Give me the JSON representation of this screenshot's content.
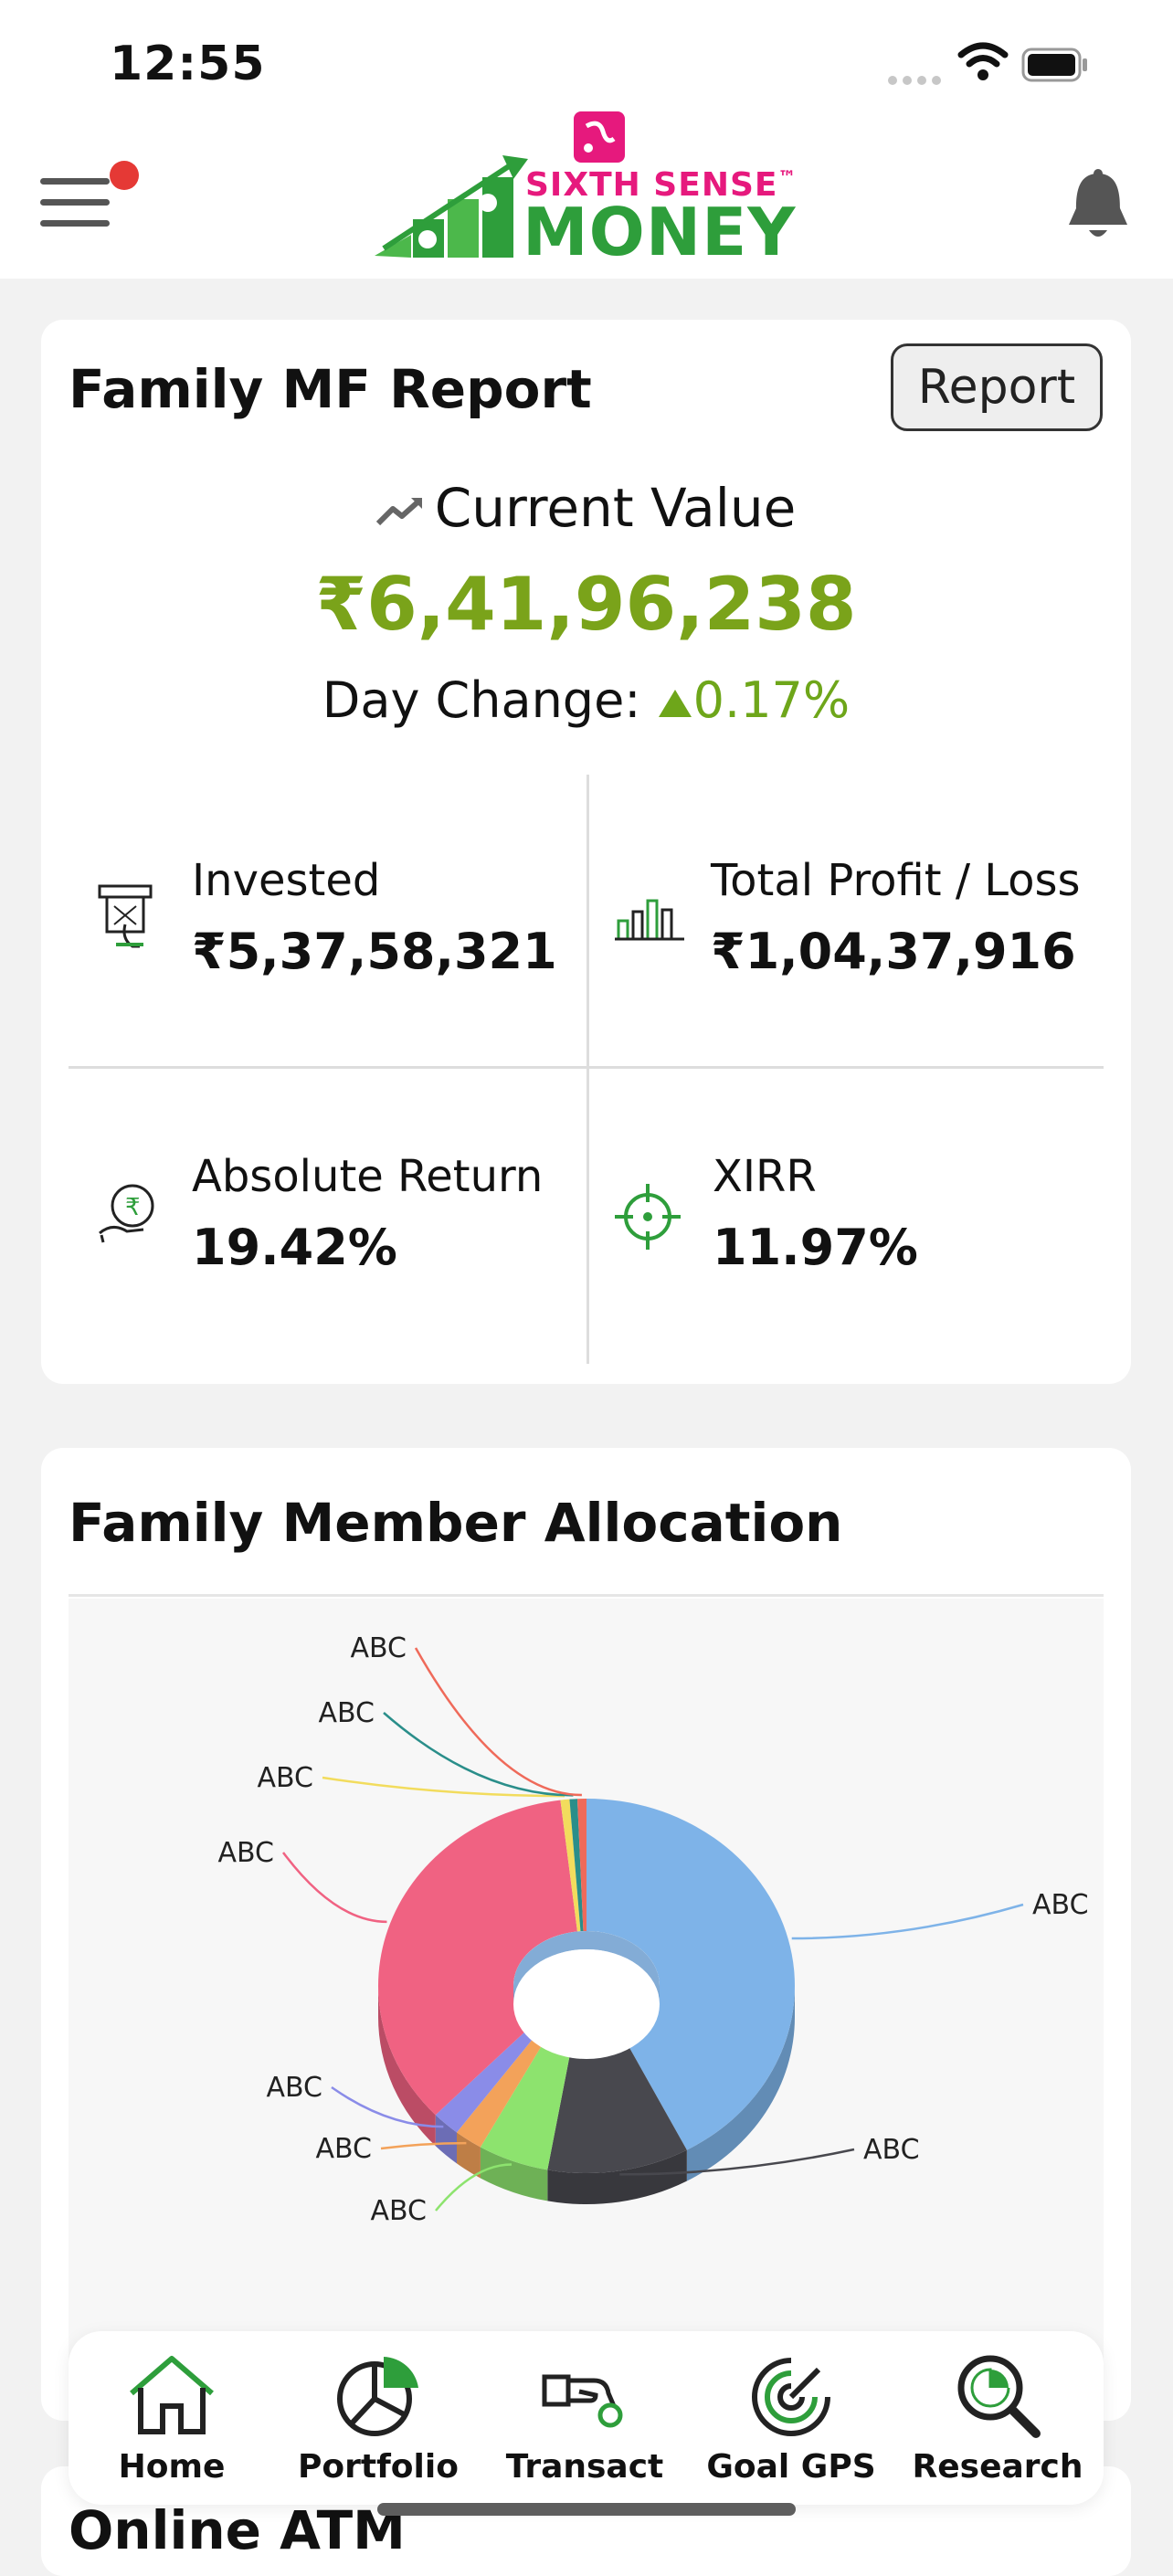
{
  "status": {
    "time": "12:55"
  },
  "brand": {
    "line1": "SIXTH SENSE",
    "tm": "™",
    "line2": "MONEY",
    "primary_color": "#2e9e3b",
    "accent_color": "#e6197d"
  },
  "report": {
    "title": "Family MF Report",
    "report_button": "Report",
    "current_value_label": "Current Value",
    "current_value": "₹6,41,96,238",
    "day_change_label": "Day Change:",
    "day_change_value": "0.17%",
    "positive_color": "#7aa31a",
    "metrics": [
      {
        "icon": "atm-cash-icon",
        "label": "Invested",
        "value": "₹5,37,58,321"
      },
      {
        "icon": "bar-chart-icon",
        "label": "Total Profit / Loss",
        "value": "₹1,04,37,916"
      },
      {
        "icon": "rupee-hand-icon",
        "label": "Absolute Return",
        "value": "19.42%"
      },
      {
        "icon": "target-icon",
        "label": "XIRR",
        "value": "11.97%"
      }
    ]
  },
  "allocation": {
    "title": "Family Member Allocation",
    "chart_data": {
      "type": "pie",
      "variant": "3d-donut",
      "slices": [
        {
          "label": "ABC",
          "value": 42.0,
          "color": "#7eb3e8"
        },
        {
          "label": "ABC",
          "value": 11.0,
          "color": "#48484e"
        },
        {
          "label": "ABC",
          "value": 5.5,
          "color": "#8de36e"
        },
        {
          "label": "ABC",
          "value": 2.2,
          "color": "#f3a25a"
        },
        {
          "label": "ABC",
          "value": 2.2,
          "color": "#8a8ce8"
        },
        {
          "label": "ABC",
          "value": 35.1,
          "color": "#f06282"
        },
        {
          "label": "ABC",
          "value": 0.7,
          "color": "#f2dc5d"
        },
        {
          "label": "ABC",
          "value": 0.6,
          "color": "#2a8e8a"
        },
        {
          "label": "ABC",
          "value": 0.7,
          "color": "#ef6a5a"
        }
      ]
    }
  },
  "next_section": {
    "title": "Online ATM"
  },
  "nav": [
    {
      "label": "Home",
      "icon": "home-icon",
      "active": true
    },
    {
      "label": "Portfolio",
      "icon": "portfolio-icon",
      "active": false
    },
    {
      "label": "Transact",
      "icon": "transact-icon",
      "active": false
    },
    {
      "label": "Goal GPS",
      "icon": "goal-gps-icon",
      "active": false
    },
    {
      "label": "Research",
      "icon": "research-icon",
      "active": false
    }
  ]
}
